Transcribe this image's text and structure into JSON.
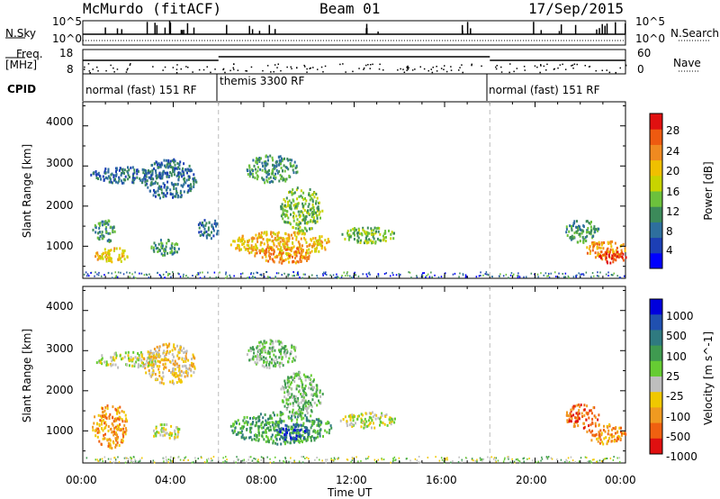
{
  "header": {
    "station": "McMurdo (fitACF)",
    "beam": "Beam 01",
    "date": "17/Sep/2015"
  },
  "strips": {
    "nsky": {
      "label": "N.Sky",
      "ticks": [
        "10^5",
        "10^0"
      ]
    },
    "nsearch": {
      "label": "N.Search",
      "ticks": [
        "10^5",
        "10^0"
      ]
    },
    "freq": {
      "label_line1": "Freq.",
      "label_line2": "[MHz]",
      "ticks": [
        "18",
        "8"
      ]
    },
    "nave": {
      "label": "Nave",
      "ticks": [
        "60",
        "0"
      ]
    },
    "cpid": {
      "label": "CPID",
      "segments": [
        {
          "label": "normal (fast) 151 RF",
          "start_hour": 0,
          "end_hour": 6
        },
        {
          "label": "themis 3300 RF",
          "start_hour": 6,
          "end_hour": 18
        },
        {
          "label": "normal (fast) 151 RF",
          "start_hour": 18,
          "end_hour": 24
        }
      ]
    }
  },
  "chart_data": [
    {
      "type": "heatmap",
      "panel": "power",
      "ylabel": "Slant Range [km]",
      "ylim": [
        200,
        4600
      ],
      "yticks": [
        "1000",
        "2000",
        "3000",
        "4000"
      ],
      "xlim": [
        0,
        24
      ],
      "xticks": [
        "00:00",
        "04:00",
        "08:00",
        "12:00",
        "16:00",
        "20:00",
        "00:00"
      ],
      "xlabel": "Time UT",
      "colorbar": {
        "label": "Power [dB]",
        "ticks": [
          "4",
          "8",
          "12",
          "16",
          "20",
          "24",
          "28"
        ],
        "colors": [
          "#0000ff",
          "#1c3fb5",
          "#2e6f9e",
          "#3c8a5a",
          "#6cc13c",
          "#c8d400",
          "#f0c000",
          "#f08a20",
          "#ee5a10",
          "#e01010"
        ]
      },
      "echo_regions": [
        {
          "t": [
            0.4,
            1.4
          ],
          "r": [
            1100,
            1700
          ],
          "level": 3
        },
        {
          "t": [
            0.5,
            2.0
          ],
          "r": [
            600,
            1000
          ],
          "level": 6
        },
        {
          "t": [
            0.3,
            3.5
          ],
          "r": [
            2600,
            3000
          ],
          "level": 2
        },
        {
          "t": [
            2.6,
            5.0
          ],
          "r": [
            2200,
            3200
          ],
          "level": 2
        },
        {
          "t": [
            3.0,
            4.3
          ],
          "r": [
            800,
            1200
          ],
          "level": 3
        },
        {
          "t": [
            5.0,
            6.1
          ],
          "r": [
            1200,
            1700
          ],
          "level": 2
        },
        {
          "t": [
            6.5,
            11.0
          ],
          "r": [
            800,
            1400
          ],
          "level": 6
        },
        {
          "t": [
            7.5,
            10.2
          ],
          "r": [
            600,
            1000
          ],
          "level": 7
        },
        {
          "t": [
            8.7,
            10.6
          ],
          "r": [
            1400,
            2500
          ],
          "level": 4
        },
        {
          "t": [
            7.2,
            9.5
          ],
          "r": [
            2600,
            3300
          ],
          "level": 3
        },
        {
          "t": [
            11.3,
            13.8
          ],
          "r": [
            1100,
            1500
          ],
          "level": 4
        },
        {
          "t": [
            21.3,
            22.8
          ],
          "r": [
            1100,
            1700
          ],
          "level": 3
        },
        {
          "t": [
            22.2,
            24.0
          ],
          "r": [
            700,
            1200
          ],
          "level": 7
        },
        {
          "t": [
            22.8,
            24.0
          ],
          "r": [
            600,
            900
          ],
          "level": 9
        }
      ]
    },
    {
      "type": "heatmap",
      "panel": "velocity",
      "ylabel": "Slant Range [km]",
      "ylim": [
        200,
        4600
      ],
      "yticks": [
        "1000",
        "2000",
        "3000",
        "4000"
      ],
      "xlim": [
        0,
        24
      ],
      "xticks": [
        "00:00",
        "04:00",
        "08:00",
        "12:00",
        "16:00",
        "20:00",
        "00:00"
      ],
      "xlabel": "Time UT",
      "colorbar": {
        "label": "Velocity [m s^-1]",
        "ticks": [
          "1000",
          "500",
          "100",
          "25",
          "-25",
          "-100",
          "-500",
          "-1000"
        ],
        "colors": [
          "#0000dd",
          "#2050b0",
          "#2f7a80",
          "#3f9a50",
          "#66cc33",
          "#bebebe",
          "#f0c800",
          "#f09a20",
          "#f06010",
          "#e01010"
        ]
      },
      "echo_regions": [
        {
          "t": [
            0.4,
            2.0
          ],
          "r": [
            600,
            1700
          ],
          "level": 7
        },
        {
          "t": [
            0.5,
            3.5
          ],
          "r": [
            2600,
            3000
          ],
          "level": 5
        },
        {
          "t": [
            2.6,
            5.0
          ],
          "r": [
            2200,
            3200
          ],
          "level": 6
        },
        {
          "t": [
            3.0,
            4.3
          ],
          "r": [
            800,
            1200
          ],
          "level": 5
        },
        {
          "t": [
            6.5,
            11.0
          ],
          "r": [
            700,
            1500
          ],
          "level": 3
        },
        {
          "t": [
            8.5,
            10.0
          ],
          "r": [
            800,
            1200
          ],
          "level": 1
        },
        {
          "t": [
            8.7,
            10.6
          ],
          "r": [
            1400,
            2500
          ],
          "level": 4
        },
        {
          "t": [
            7.2,
            9.5
          ],
          "r": [
            2600,
            3300
          ],
          "level": 4
        },
        {
          "t": [
            11.3,
            13.8
          ],
          "r": [
            1100,
            1500
          ],
          "level": 5
        },
        {
          "t": [
            21.3,
            22.8
          ],
          "r": [
            1100,
            1700
          ],
          "level": 8
        },
        {
          "t": [
            22.2,
            24.0
          ],
          "r": [
            700,
            1200
          ],
          "level": 7
        }
      ]
    }
  ]
}
